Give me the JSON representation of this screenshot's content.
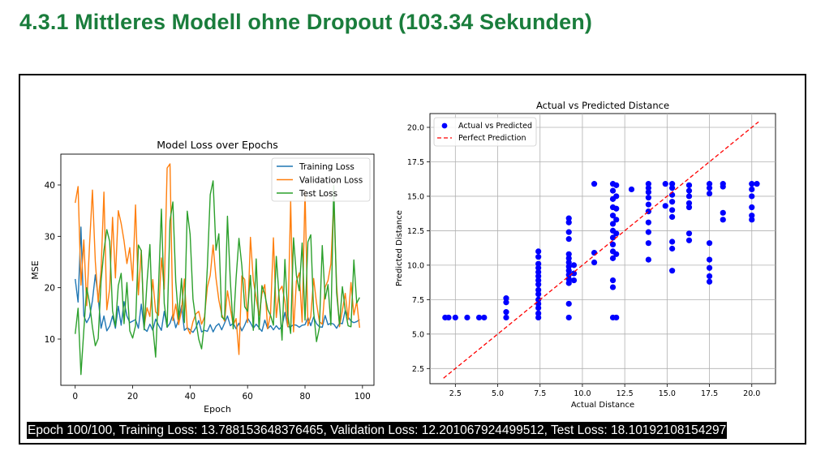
{
  "page": {
    "heading": "4.3.1 Mittleres Modell ohne Dropout (103.34 Sekunden)"
  },
  "output": {
    "status_text": "Epoch 100/100, Training Loss: 13.788153648376465, Validation Loss: 12.201067924499512, Test Loss: 18.10192108154297"
  },
  "chart_data": [
    {
      "type": "line",
      "title": "Model Loss over Epochs",
      "xlabel": "Epoch",
      "ylabel": "MSE",
      "xlim": [
        -5,
        104
      ],
      "ylim": [
        1,
        46
      ],
      "xticks": [
        0,
        20,
        40,
        60,
        80,
        100
      ],
      "yticks": [
        10,
        20,
        30,
        40
      ],
      "grid": false,
      "legend_position": "top-right",
      "x": [
        0,
        1,
        2,
        3,
        4,
        5,
        6,
        7,
        8,
        9,
        10,
        11,
        12,
        13,
        14,
        15,
        16,
        17,
        18,
        19,
        20,
        21,
        22,
        23,
        24,
        25,
        26,
        27,
        28,
        29,
        30,
        31,
        32,
        33,
        34,
        35,
        36,
        37,
        38,
        39,
        40,
        41,
        42,
        43,
        44,
        45,
        46,
        47,
        48,
        49,
        50,
        51,
        52,
        53,
        54,
        55,
        56,
        57,
        58,
        59,
        60,
        61,
        62,
        63,
        64,
        65,
        66,
        67,
        68,
        69,
        70,
        71,
        72,
        73,
        74,
        75,
        76,
        77,
        78,
        79,
        80,
        81,
        82,
        83,
        84,
        85,
        86,
        87,
        88,
        89,
        90,
        91,
        92,
        93,
        94,
        95,
        96,
        97,
        98,
        99
      ],
      "series": [
        {
          "name": "Training Loss",
          "color": "#1f77b4",
          "values": [
            21.7,
            17.2,
            31.8,
            14.5,
            13.2,
            14.3,
            17.5,
            22.5,
            18.2,
            12.1,
            14.5,
            11.6,
            12.5,
            14.5,
            12.1,
            16.4,
            12.7,
            17.3,
            14.5,
            13.2,
            13.5,
            13.8,
            12.1,
            16.8,
            12.0,
            11.5,
            12.9,
            11.7,
            13.9,
            12.7,
            11.7,
            15.4,
            12.3,
            13.1,
            14.8,
            12.2,
            13.8,
            16.5,
            11.7,
            12.2,
            11.8,
            11.3,
            12.2,
            13.6,
            11.4,
            11.7,
            11.5,
            12.8,
            11.4,
            12.5,
            13.0,
            11.8,
            13.1,
            14.5,
            12.6,
            13.1,
            12.0,
            13.1,
            11.6,
            12.7,
            14.1,
            13.2,
            12.1,
            12.9,
            12.2,
            11.5,
            13.7,
            12.0,
            12.6,
            11.8,
            12.6,
            11.9,
            12.5,
            15.2,
            12.4,
            12.4,
            12.8,
            12.7,
            12.3,
            12.7,
            12.8,
            14.2,
            12.6,
            14.3,
            13.0,
            12.4,
            12.3,
            14.6,
            12.8,
            13.1,
            12.9,
            12.1,
            13.1,
            13.0,
            15.6,
            14.3,
            13.5,
            13.2,
            13.4,
            13.8
          ]
        },
        {
          "name": "Validation Loss",
          "color": "#ff7f0e",
          "values": [
            36.5,
            39.7,
            20.5,
            29.3,
            16.5,
            28.4,
            39.0,
            25.1,
            17.2,
            23.4,
            38.6,
            15.7,
            19.8,
            33.7,
            21.9,
            35.0,
            32.5,
            29.1,
            24.7,
            27.8,
            21.4,
            36.1,
            18.6,
            27.3,
            12.4,
            16.1,
            14.4,
            21.6,
            15.3,
            14.6,
            25.8,
            19.7,
            43.3,
            44.1,
            13.6,
            16.8,
            12.8,
            15.6,
            21.7,
            12.2,
            11.0,
            13.4,
            14.9,
            15.4,
            12.9,
            14.3,
            20.1,
            22.4,
            28.3,
            21.9,
            17.6,
            14.8,
            13.5,
            19.4,
            16.0,
            12.7,
            14.0,
            7.0,
            22.3,
            21.6,
            13.2,
            29.8,
            21.4,
            18.0,
            14.6,
            18.8,
            20.6,
            12.0,
            14.9,
            29.7,
            14.2,
            19.4,
            20.3,
            17.3,
            12.4,
            36.9,
            11.4,
            21.3,
            22.9,
            13.3,
            38.8,
            12.6,
            14.4,
            21.8,
            17.0,
            13.4,
            12.9,
            20.1,
            21.4,
            24.6,
            36.7,
            20.5,
            12.4,
            15.6,
            18.9,
            13.8,
            21.0,
            14.7,
            17.3,
            12.2
          ]
        },
        {
          "name": "Test Loss",
          "color": "#2ca02c",
          "values": [
            11.0,
            16.0,
            3.1,
            11.7,
            20.0,
            17.0,
            12.3,
            8.7,
            10.1,
            21.3,
            27.2,
            31.3,
            29.0,
            15.5,
            12.5,
            20.4,
            22.8,
            13.0,
            21.0,
            11.6,
            10.2,
            12.6,
            28.3,
            27.2,
            11.8,
            21.1,
            28.4,
            12.5,
            6.5,
            20.1,
            35.3,
            16.9,
            12.3,
            33.0,
            36.7,
            21.2,
            13.9,
            21.8,
            13.2,
            34.9,
            30.4,
            17.8,
            13.6,
            10.0,
            8.1,
            13.2,
            24.0,
            38.1,
            40.8,
            27.3,
            30.5,
            14.3,
            13.8,
            33.9,
            21.3,
            12.0,
            21.8,
            29.6,
            24.3,
            16.3,
            15.4,
            22.4,
            11.7,
            25.6,
            11.9,
            20.4,
            18.7,
            15.8,
            14.6,
            12.7,
            26.1,
            18.0,
            9.8,
            25.5,
            14.6,
            11.1,
            29.7,
            22.4,
            19.4,
            28.7,
            13.7,
            28.9,
            30.3,
            15.3,
            9.5,
            12.2,
            28.2,
            17.8,
            20.6,
            12.7,
            39.9,
            19.0,
            12.9,
            20.2,
            15.6,
            12.6,
            12.4,
            25.4,
            17.0,
            18.1
          ]
        }
      ]
    },
    {
      "type": "scatter",
      "title": "Actual vs Predicted Distance",
      "xlabel": "Actual Distance",
      "ylabel": "Predicted Distance",
      "xlim": [
        1.0,
        21.4
      ],
      "ylim": [
        1.4,
        21.0
      ],
      "xticks": [
        2.5,
        5.0,
        7.5,
        10.0,
        12.5,
        15.0,
        17.5,
        20.0
      ],
      "yticks": [
        2.5,
        5.0,
        7.5,
        10.0,
        12.5,
        15.0,
        17.5,
        20.0
      ],
      "grid": true,
      "legend_position": "top-left",
      "series": [
        {
          "name": "Actual vs Predicted",
          "color": "#0000ff",
          "points": [
            [
              1.9,
              6.2
            ],
            [
              2.1,
              6.2
            ],
            [
              2.5,
              6.2
            ],
            [
              3.2,
              6.2
            ],
            [
              3.9,
              6.2
            ],
            [
              4.2,
              6.2
            ],
            [
              5.5,
              6.2
            ],
            [
              5.5,
              6.6
            ],
            [
              5.5,
              7.3
            ],
            [
              5.5,
              7.6
            ],
            [
              7.4,
              6.2
            ],
            [
              7.4,
              6.5
            ],
            [
              7.4,
              6.9
            ],
            [
              7.4,
              7.2
            ],
            [
              7.4,
              7.5
            ],
            [
              7.4,
              7.9
            ],
            [
              7.4,
              8.2
            ],
            [
              7.4,
              8.6
            ],
            [
              7.4,
              8.9
            ],
            [
              7.4,
              9.2
            ],
            [
              7.4,
              9.5
            ],
            [
              7.4,
              9.8
            ],
            [
              7.4,
              10.1
            ],
            [
              7.4,
              10.6
            ],
            [
              7.4,
              11.0
            ],
            [
              9.2,
              6.2
            ],
            [
              9.2,
              7.2
            ],
            [
              9.2,
              8.7
            ],
            [
              9.2,
              9.0
            ],
            [
              9.2,
              9.3
            ],
            [
              9.2,
              9.6
            ],
            [
              9.2,
              9.9
            ],
            [
              9.2,
              10.2
            ],
            [
              9.2,
              10.5
            ],
            [
              9.2,
              10.8
            ],
            [
              9.2,
              11.9
            ],
            [
              9.2,
              12.4
            ],
            [
              9.2,
              13.1
            ],
            [
              9.2,
              13.4
            ],
            [
              9.5,
              8.9
            ],
            [
              9.5,
              9.4
            ],
            [
              9.5,
              10.0
            ],
            [
              10.7,
              10.2
            ],
            [
              10.7,
              10.9
            ],
            [
              10.7,
              15.9
            ],
            [
              11.8,
              6.2
            ],
            [
              11.8,
              8.4
            ],
            [
              11.8,
              8.9
            ],
            [
              11.8,
              10.5
            ],
            [
              11.8,
              11.0
            ],
            [
              11.8,
              11.5
            ],
            [
              11.8,
              12.0
            ],
            [
              11.8,
              12.5
            ],
            [
              11.8,
              13.0
            ],
            [
              11.8,
              13.6
            ],
            [
              11.8,
              14.2
            ],
            [
              11.8,
              14.8
            ],
            [
              11.8,
              15.4
            ],
            [
              11.8,
              15.9
            ],
            [
              12.0,
              6.2
            ],
            [
              12.0,
              10.8
            ],
            [
              12.0,
              12.3
            ],
            [
              12.0,
              13.3
            ],
            [
              12.0,
              14.1
            ],
            [
              12.0,
              15.0
            ],
            [
              12.0,
              15.8
            ],
            [
              12.9,
              15.5
            ],
            [
              13.9,
              10.4
            ],
            [
              13.9,
              11.6
            ],
            [
              13.9,
              12.4
            ],
            [
              13.9,
              13.1
            ],
            [
              13.9,
              13.9
            ],
            [
              13.9,
              14.4
            ],
            [
              13.9,
              14.9
            ],
            [
              13.9,
              15.3
            ],
            [
              13.9,
              15.6
            ],
            [
              13.9,
              15.9
            ],
            [
              14.9,
              14.3
            ],
            [
              14.9,
              15.9
            ],
            [
              15.3,
              9.6
            ],
            [
              15.3,
              11.2
            ],
            [
              15.3,
              11.7
            ],
            [
              15.3,
              13.5
            ],
            [
              15.3,
              14.0
            ],
            [
              15.3,
              14.6
            ],
            [
              15.3,
              15.1
            ],
            [
              15.3,
              15.6
            ],
            [
              15.3,
              15.9
            ],
            [
              16.3,
              11.8
            ],
            [
              16.3,
              12.3
            ],
            [
              16.3,
              14.2
            ],
            [
              16.3,
              14.5
            ],
            [
              16.3,
              15.0
            ],
            [
              16.3,
              15.4
            ],
            [
              16.3,
              15.8
            ],
            [
              17.5,
              8.8
            ],
            [
              17.5,
              9.2
            ],
            [
              17.5,
              9.8
            ],
            [
              17.5,
              10.4
            ],
            [
              17.5,
              11.6
            ],
            [
              17.5,
              15.2
            ],
            [
              17.5,
              15.6
            ],
            [
              17.5,
              15.9
            ],
            [
              18.3,
              13.3
            ],
            [
              18.3,
              13.8
            ],
            [
              18.3,
              15.7
            ],
            [
              18.3,
              15.9
            ],
            [
              20.0,
              13.3
            ],
            [
              20.0,
              13.6
            ],
            [
              20.0,
              14.2
            ],
            [
              20.0,
              15.0
            ],
            [
              20.0,
              15.5
            ],
            [
              20.0,
              15.9
            ],
            [
              20.3,
              15.9
            ]
          ]
        },
        {
          "name": "Perfect Prediction",
          "color": "#ff0000",
          "style": "dashed",
          "points": [
            [
              1.8,
              1.8
            ],
            [
              20.4,
              20.4
            ]
          ]
        }
      ]
    }
  ]
}
